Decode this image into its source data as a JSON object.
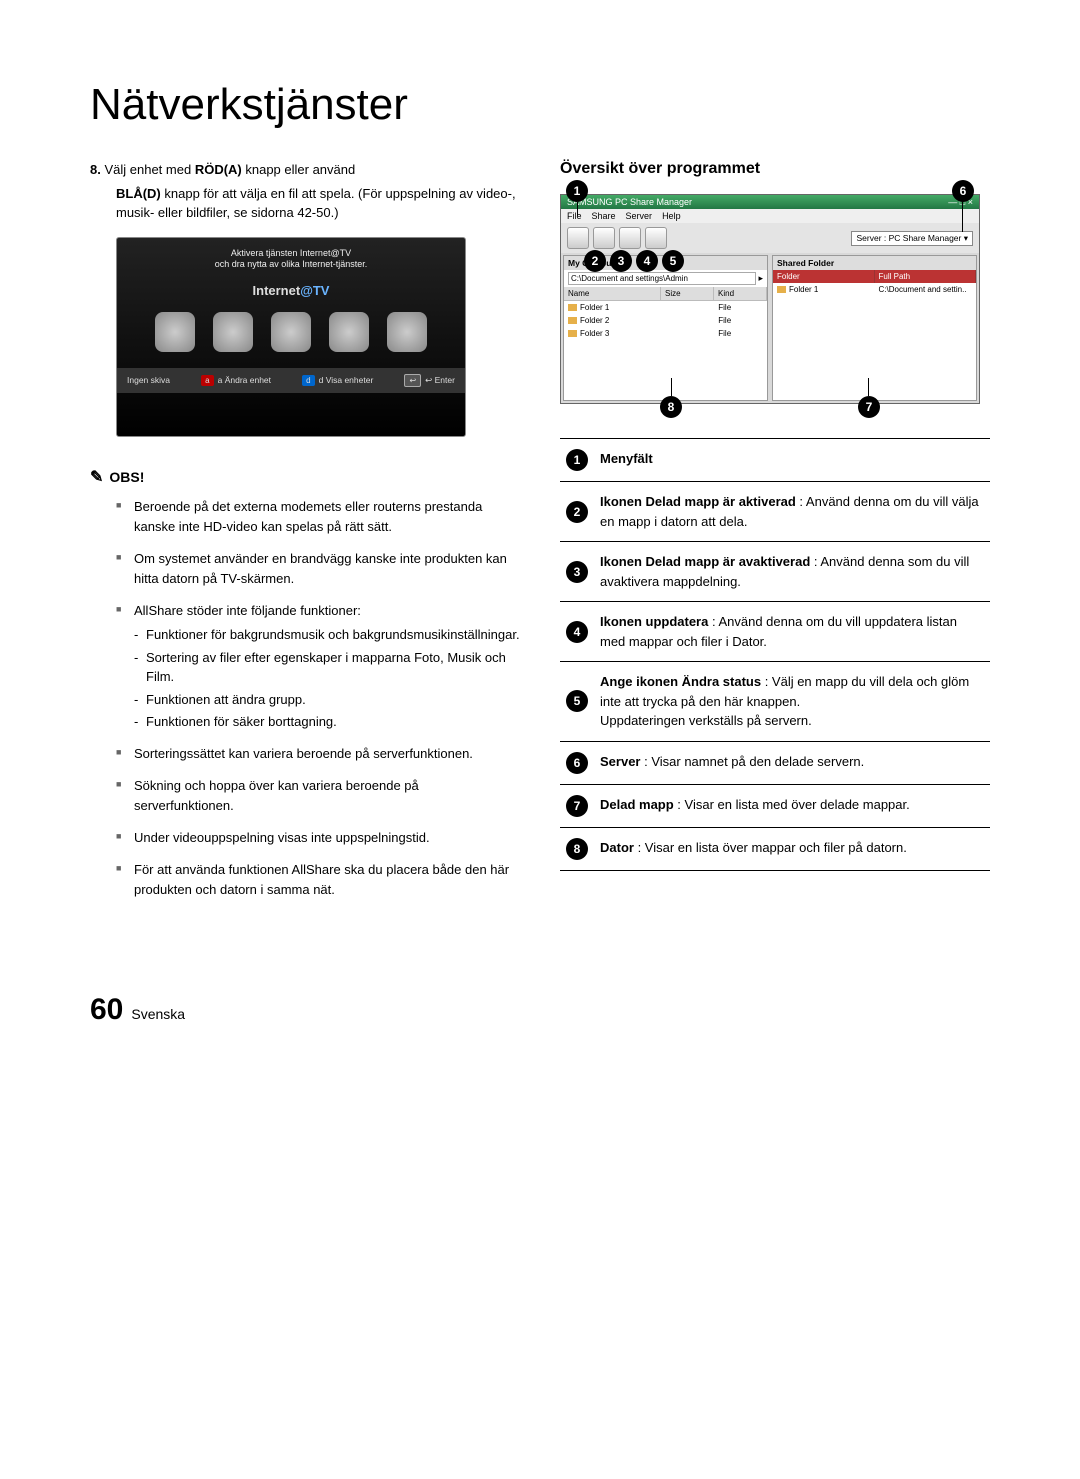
{
  "page": {
    "title": "Nätverkstjänster",
    "number": "60",
    "lang": "Svenska"
  },
  "left": {
    "step_num": "8.",
    "step_a": "Välj enhet med ",
    "step_red": "RÖD(A)",
    "step_b": " knapp eller använd ",
    "step_blue": "BLÅ(D)",
    "step_c": " knapp för att välja en fil att spela. (För uppspelning av video-, musik- eller bildfiler, se sidorna 42-50.)",
    "tv": {
      "banner1": "Aktivera tjänsten Internet@TV",
      "banner2": "och dra nytta av olika Internet-tjänster.",
      "logo_a": "Internet",
      "logo_b": "@TV",
      "foot_left": "Ingen skiva",
      "foot_a": "a Ändra enhet",
      "foot_b": "d Visa enheter",
      "foot_ret": "↩ Enter"
    },
    "obs_label": "OBS!",
    "obs": [
      "Beroende på det externa modemets eller routerns prestanda kanske inte HD-video kan spelas på rätt sätt.",
      "Om systemet använder en brandvägg kanske inte produkten kan hitta datorn på TV-skärmen.",
      "AllShare stöder inte följande funktioner:",
      "Sorteringssättet kan variera beroende på serverfunktionen.",
      "Sökning och hoppa över kan variera beroende på serverfunktionen.",
      "Under videouppspelning visas inte uppspelningstid.",
      "För att använda funktionen AllShare ska du placera både den här produkten och datorn i samma nät."
    ],
    "obs_sub": [
      "Funktioner för bakgrundsmusik och bakgrundsmusikinställningar.",
      "Sortering av filer efter egenskaper i mapparna Foto, Musik och Film.",
      "Funktionen att ändra grupp.",
      "Funktionen för säker borttagning."
    ]
  },
  "right": {
    "title": "Översikt över programmet",
    "win": {
      "title": "SAMSUNG PC Share Manager",
      "menus": [
        "File",
        "Share",
        "Server",
        "Help"
      ],
      "server_sel": "Server : PC Share Manager ▾",
      "left_h": "My Computer",
      "path": "C:\\Document and settings\\Admin",
      "cols": [
        "Name",
        "Size",
        "Kind"
      ],
      "rows": [
        [
          "Folder 1",
          "",
          "File"
        ],
        [
          "Folder 2",
          "",
          "File"
        ],
        [
          "Folder 3",
          "",
          "File"
        ]
      ],
      "right_h": "Shared Folder",
      "right_cols": [
        "Folder",
        "Full Path"
      ],
      "right_row": [
        "Folder 1",
        "C:\\Document and settin.."
      ]
    },
    "callouts": [
      "1",
      "2",
      "3",
      "4",
      "5",
      "6",
      "7",
      "8"
    ],
    "table": [
      {
        "n": "1",
        "html": "<b>Menyfält</b>"
      },
      {
        "n": "2",
        "html": "<b>Ikonen Delad mapp är aktiverad</b> : Använd denna om du vill välja en mapp i datorn att dela."
      },
      {
        "n": "3",
        "html": "<b>Ikonen Delad mapp är avaktiverad</b> : Använd denna som du vill avaktivera mappdelning."
      },
      {
        "n": "4",
        "html": "<b>Ikonen uppdatera</b> : Använd denna om du vill uppdatera listan med mappar och filer i Dator."
      },
      {
        "n": "5",
        "html": "<b>Ange ikonen Ändra status</b> : Välj en mapp du vill dela och glöm inte att trycka på den här knappen.<br>Uppdateringen verkställs på servern."
      },
      {
        "n": "6",
        "html": "<b>Server</b> : Visar namnet på den delade servern."
      },
      {
        "n": "7",
        "html": "<b>Delad mapp</b> : Visar en lista med över delade mappar."
      },
      {
        "n": "8",
        "html": "<b>Dator</b> : Visar en lista över mappar och filer på datorn."
      }
    ]
  }
}
